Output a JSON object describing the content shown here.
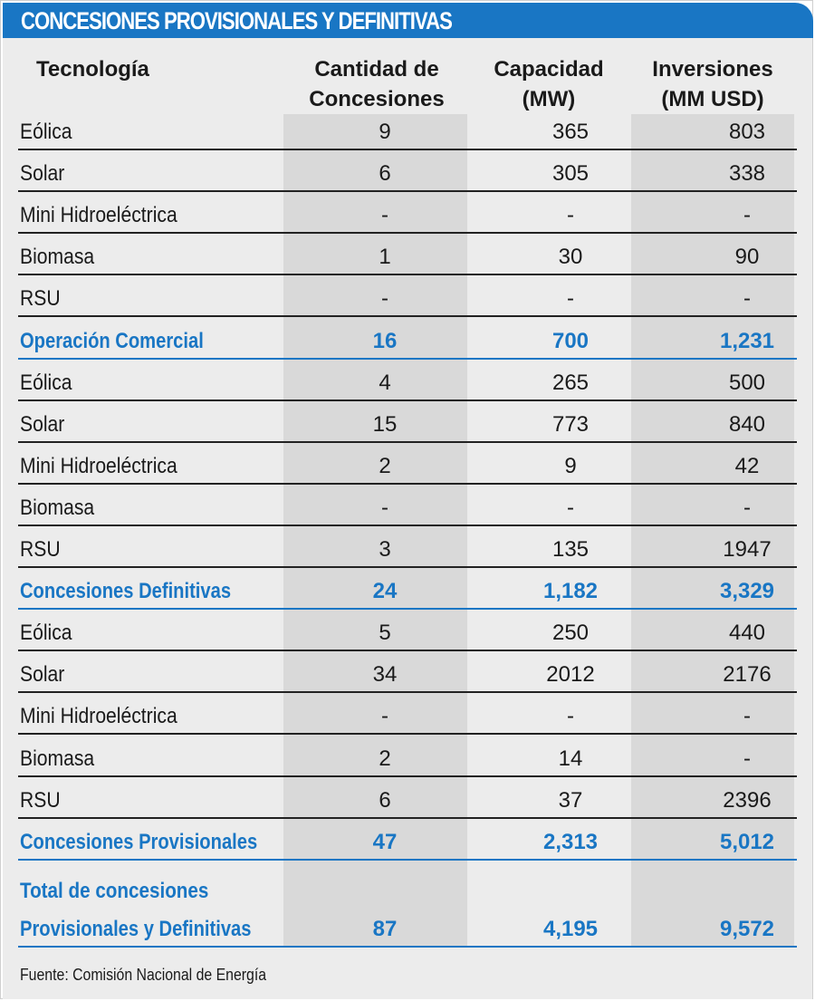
{
  "title": "CONCESIONES PROVISIONALES Y DEFINITIVAS",
  "headers": {
    "tecnologia": "Tecnología",
    "cantidad_1": "Cantidad de",
    "cantidad_2": "Concesiones",
    "capacidad_1": "Capacidad",
    "capacidad_2": "(MW)",
    "inversiones_1": "Inversiones",
    "inversiones_2": "(MM USD)"
  },
  "rows": [
    {
      "label": "Eólica",
      "cantidad": "9",
      "capacidad": "365",
      "inversiones": "803",
      "subtotal": false
    },
    {
      "label": "Solar",
      "cantidad": "6",
      "capacidad": "305",
      "inversiones": "338",
      "subtotal": false
    },
    {
      "label": "Mini Hidroeléctrica",
      "cantidad": "-",
      "capacidad": "-",
      "inversiones": "-",
      "subtotal": false
    },
    {
      "label": "Biomasa",
      "cantidad": "1",
      "capacidad": "30",
      "inversiones": "90",
      "subtotal": false
    },
    {
      "label": "RSU",
      "cantidad": "-",
      "capacidad": "-",
      "inversiones": "-",
      "subtotal": false
    },
    {
      "label": "Operación Comercial",
      "cantidad": "16",
      "capacidad": "700",
      "inversiones": "1,231",
      "subtotal": true
    },
    {
      "label": "Eólica",
      "cantidad": "4",
      "capacidad": "265",
      "inversiones": "500",
      "subtotal": false
    },
    {
      "label": "Solar",
      "cantidad": "15",
      "capacidad": "773",
      "inversiones": "840",
      "subtotal": false
    },
    {
      "label": "Mini Hidroeléctrica",
      "cantidad": "2",
      "capacidad": "9",
      "inversiones": "42",
      "subtotal": false
    },
    {
      "label": "Biomasa",
      "cantidad": "-",
      "capacidad": "-",
      "inversiones": "-",
      "subtotal": false
    },
    {
      "label": "RSU",
      "cantidad": "3",
      "capacidad": "135",
      "inversiones": "1947",
      "subtotal": false
    },
    {
      "label": "Concesiones Definitivas",
      "cantidad": "24",
      "capacidad": "1,182",
      "inversiones": "3,329",
      "subtotal": true
    },
    {
      "label": "Eólica",
      "cantidad": "5",
      "capacidad": "250",
      "inversiones": "440",
      "subtotal": false
    },
    {
      "label": "Solar",
      "cantidad": "34",
      "capacidad": "2012",
      "inversiones": "2176",
      "subtotal": false
    },
    {
      "label": "Mini Hidroeléctrica",
      "cantidad": "-",
      "capacidad": "-",
      "inversiones": "-",
      "subtotal": false
    },
    {
      "label": "Biomasa",
      "cantidad": "2",
      "capacidad": "14",
      "inversiones": "-",
      "subtotal": false
    },
    {
      "label": "RSU",
      "cantidad": "6",
      "capacidad": "37",
      "inversiones": "2396",
      "subtotal": false
    },
    {
      "label": "Concesiones Provisionales",
      "cantidad": "47",
      "capacidad": "2,313",
      "inversiones": "5,012",
      "subtotal": true
    }
  ],
  "total": {
    "label_line1": "Total de concesiones",
    "label_line2": "Provisionales y Definitivas",
    "cantidad": "87",
    "capacidad": "4,195",
    "inversiones": "9,572"
  },
  "source": "Fuente: Comisión Nacional de Energía",
  "colors": {
    "accent": "#1976c4",
    "background": "#ececec",
    "shade": "#d9d9d9"
  }
}
